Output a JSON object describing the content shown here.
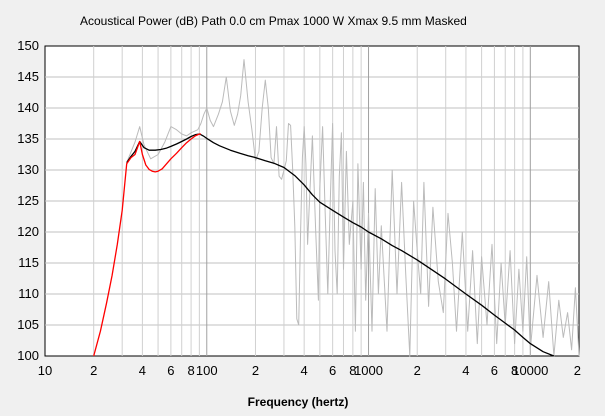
{
  "chart_data": {
    "type": "line",
    "title": "Acoustical Power (dB)   Path 0.0 cm   Pmax 1000 W   Xmax 9.5 mm   Masked",
    "xlabel": "Frequency (hertz)",
    "ylabel": "",
    "x_scale": "log",
    "xlim": [
      10,
      20000
    ],
    "ylim": [
      100,
      150
    ],
    "grid": true,
    "x_tick_labels": [
      {
        "value": 10,
        "label": "10"
      },
      {
        "value": 20,
        "label": "2"
      },
      {
        "value": 40,
        "label": "4"
      },
      {
        "value": 60,
        "label": "6"
      },
      {
        "value": 80,
        "label": "8"
      },
      {
        "value": 100,
        "label": "100"
      },
      {
        "value": 200,
        "label": "2"
      },
      {
        "value": 400,
        "label": "4"
      },
      {
        "value": 600,
        "label": "6"
      },
      {
        "value": 800,
        "label": "8"
      },
      {
        "value": 1000,
        "label": "1000"
      },
      {
        "value": 2000,
        "label": "2"
      },
      {
        "value": 4000,
        "label": "4"
      },
      {
        "value": 6000,
        "label": "6"
      },
      {
        "value": 8000,
        "label": "8"
      },
      {
        "value": 10000,
        "label": "10000"
      },
      {
        "value": 20000,
        "label": "2"
      }
    ],
    "y_tick_labels": [
      {
        "value": 100,
        "label": "100"
      },
      {
        "value": 105,
        "label": "105"
      },
      {
        "value": 110,
        "label": "110"
      },
      {
        "value": 115,
        "label": "115"
      },
      {
        "value": 120,
        "label": "120"
      },
      {
        "value": 125,
        "label": "125"
      },
      {
        "value": 130,
        "label": "130"
      },
      {
        "value": 135,
        "label": "135"
      },
      {
        "value": 140,
        "label": "140"
      },
      {
        "value": 145,
        "label": "145"
      },
      {
        "value": 150,
        "label": "150"
      }
    ],
    "series": [
      {
        "color": "#bbbbbb",
        "x": [
          32,
          36,
          38.5,
          41,
          45,
          50,
          55,
          60,
          65,
          70,
          75,
          80,
          88,
          92,
          96,
          100,
          105,
          110,
          118,
          125,
          132,
          140,
          148,
          155,
          162,
          170,
          180,
          190,
          200,
          210,
          220,
          230,
          240,
          250,
          260,
          270,
          280,
          290,
          300,
          310,
          320,
          330,
          340,
          350,
          360,
          370,
          380,
          390,
          400,
          410,
          420,
          430,
          450,
          470,
          490,
          500,
          520,
          540,
          560,
          580,
          600,
          620,
          640,
          660,
          680,
          700,
          730,
          760,
          800,
          830,
          860,
          900,
          930,
          960,
          1000,
          1050,
          1100,
          1150,
          1200,
          1300,
          1400,
          1500,
          1600,
          1700,
          1800,
          1900,
          2000,
          2100,
          2200,
          2350,
          2500,
          2700,
          2900,
          3100,
          3300,
          3500,
          3800,
          4100,
          4400,
          4700,
          5000,
          5400,
          5800,
          6200,
          6600,
          7000,
          7500,
          8000,
          8500,
          9000,
          9500,
          10000,
          11000,
          12000,
          13000,
          14000,
          15000,
          16000,
          17000,
          18000,
          19000,
          20000
        ],
        "y": [
          131.2,
          134.5,
          137.0,
          134.0,
          131.8,
          132.5,
          134.5,
          137.0,
          136.5,
          135.8,
          135.5,
          136.0,
          136.5,
          137.5,
          139.0,
          140.0,
          138.0,
          137.0,
          139.0,
          141.0,
          145.0,
          139.5,
          137.2,
          139.0,
          142.0,
          147.8,
          141.0,
          136.5,
          131.5,
          133.0,
          140.0,
          144.5,
          140.0,
          132.0,
          131.0,
          137.0,
          129.0,
          128.5,
          130.0,
          131.5,
          137.5,
          137.2,
          130.0,
          121.0,
          106.0,
          105.0,
          120.0,
          132.0,
          137.0,
          131.0,
          118.0,
          124.0,
          135.5,
          121.0,
          109.0,
          127.0,
          137.0,
          123.0,
          110.0,
          125.0,
          137.5,
          117.0,
          110.0,
          129.0,
          136.0,
          114.0,
          133.0,
          118.0,
          125.0,
          104.0,
          131.0,
          114.0,
          128.0,
          109.0,
          123.0,
          104.0,
          127.0,
          110.0,
          121.0,
          104.0,
          130.0,
          110.0,
          128.0,
          113.0,
          100.0,
          125.0,
          117.0,
          110.0,
          128.0,
          108.0,
          124.0,
          112.0,
          107.0,
          123.0,
          115.0,
          104.0,
          120.0,
          104.0,
          117.0,
          102.0,
          116.0,
          105.0,
          118.0,
          102.0,
          115.0,
          105.0,
          117.0,
          102.0,
          114.0,
          104.0,
          116.0,
          101.0,
          113.0,
          103.0,
          112.0,
          100.0,
          109.0,
          103.0,
          107.0,
          101.0,
          111.0,
          100.0
        ]
      },
      {
        "color": "#000000",
        "x": [
          32,
          34,
          36,
          38.5,
          41,
          44,
          48,
          52,
          56,
          60,
          65,
          70,
          75,
          80,
          85,
          90,
          92,
          95,
          100,
          110,
          120,
          140,
          160,
          180,
          200,
          230,
          260,
          300,
          350,
          400,
          450,
          500,
          600,
          700,
          800,
          900,
          1000,
          1200,
          1400,
          1600,
          2000,
          2500,
          3000,
          4000,
          5000,
          6000,
          7000,
          8000,
          9000,
          10000,
          12000,
          14000
        ],
        "y": [
          131.2,
          132.2,
          133.0,
          134.6,
          133.6,
          133.2,
          133.2,
          133.3,
          133.5,
          133.8,
          134.2,
          134.6,
          135.0,
          135.4,
          135.7,
          135.8,
          135.7,
          135.5,
          135.1,
          134.4,
          133.9,
          133.2,
          132.7,
          132.3,
          132.0,
          131.5,
          131.1,
          130.4,
          129.1,
          127.6,
          126.0,
          124.8,
          123.5,
          122.4,
          121.5,
          120.8,
          120.0,
          118.9,
          117.8,
          117.0,
          115.5,
          113.8,
          112.4,
          110.0,
          108.2,
          106.6,
          105.3,
          104.2,
          103.0,
          102.0,
          100.7,
          99.8
        ]
      },
      {
        "color": "#ff0000",
        "x": [
          20,
          22,
          24,
          26,
          28,
          30,
          32,
          34,
          36,
          38.5,
          40,
          42,
          44,
          46,
          48,
          50,
          53,
          56,
          60,
          65,
          70,
          75,
          80,
          85,
          90,
          92
        ],
        "y": [
          100.0,
          104.0,
          108.5,
          113.0,
          118.0,
          123.5,
          131.0,
          132.0,
          132.5,
          134.6,
          132.5,
          130.8,
          130.1,
          129.8,
          129.7,
          129.8,
          130.2,
          130.9,
          131.8,
          132.7,
          133.6,
          134.4,
          135.0,
          135.5,
          135.8,
          135.8
        ]
      }
    ]
  }
}
